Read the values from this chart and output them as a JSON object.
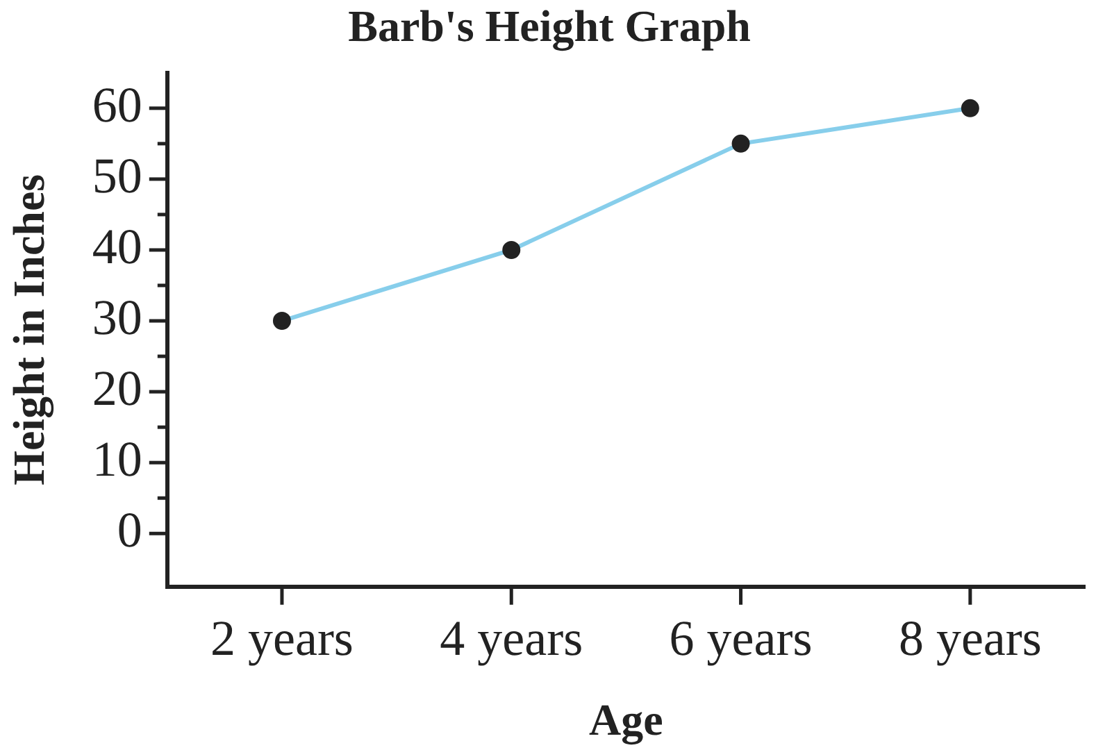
{
  "chart_data": {
    "type": "line",
    "title": "Barb's Height Graph",
    "xlabel": "Age",
    "ylabel": "Height in Inches",
    "categories": [
      "2 years",
      "4 years",
      "6 years",
      "8 years"
    ],
    "series": [
      {
        "color": "#87ceeb",
        "values": [
          30,
          40,
          55,
          60
        ]
      }
    ],
    "ylim": [
      -7.5,
      65
    ],
    "yticks": [
      0,
      {
        "value": 5,
        "label": null
      },
      10,
      {
        "value": 15,
        "label": null
      },
      20,
      {
        "value": 25,
        "label": null
      },
      30,
      {
        "value": 35,
        "label": null
      },
      40,
      {
        "value": 45,
        "label": null
      },
      50,
      {
        "value": 55,
        "label": null
      },
      60
    ],
    "marker": "circle",
    "line_style": "solid"
  }
}
